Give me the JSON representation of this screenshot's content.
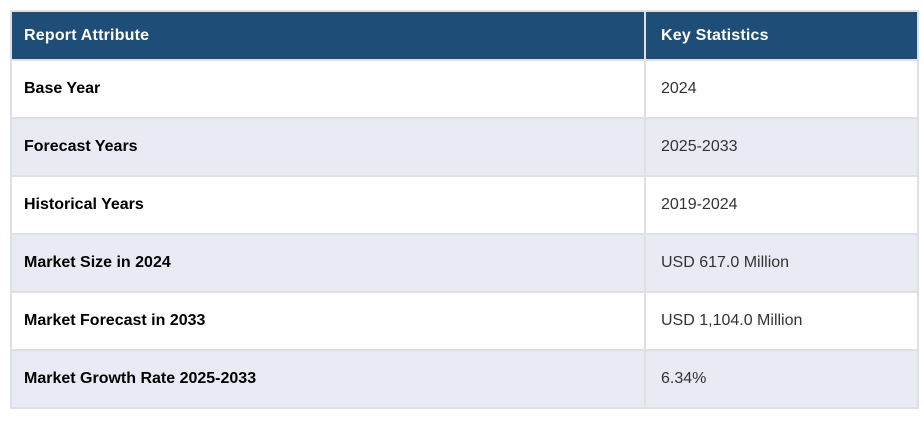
{
  "table": {
    "headers": {
      "attribute": "Report Attribute",
      "statistics": "Key Statistics"
    },
    "rows": [
      {
        "attribute": "Base Year",
        "value": "2024"
      },
      {
        "attribute": "Forecast Years",
        "value": "2025-2033"
      },
      {
        "attribute": "Historical Years",
        "value": "2019-2024"
      },
      {
        "attribute": "Market Size in 2024",
        "value": "USD 617.0 Million"
      },
      {
        "attribute": "Market Forecast in 2033",
        "value": "USD 1,104.0 Million"
      },
      {
        "attribute": "Market Growth Rate 2025-2033",
        "value": "6.34%"
      }
    ]
  },
  "colors": {
    "header_bg": "#1e4e78",
    "header_text": "#ffffff",
    "row_bg": "#ffffff",
    "row_alt_bg": "#e8eaf4",
    "border": "#dee0e4",
    "attribute_text": "#000000",
    "value_text": "#333333",
    "page_bg": "#ffffff"
  },
  "chart_data": {
    "type": "table",
    "title": "",
    "columns": [
      "Report Attribute",
      "Key Statistics"
    ],
    "rows": [
      [
        "Base Year",
        "2024"
      ],
      [
        "Forecast Years",
        "2025-2033"
      ],
      [
        "Historical Years",
        "2019-2024"
      ],
      [
        "Market Size in 2024",
        "USD 617.0 Million"
      ],
      [
        "Market Forecast in 2033",
        "USD 1,104.0 Million"
      ],
      [
        "Market Growth Rate 2025-2033",
        "6.34%"
      ]
    ],
    "layout": {
      "header_style": "dark-blue-bold-white",
      "row_striping": "white / light-lavender alternating",
      "grid": "light-gray 2px cell borders"
    }
  }
}
